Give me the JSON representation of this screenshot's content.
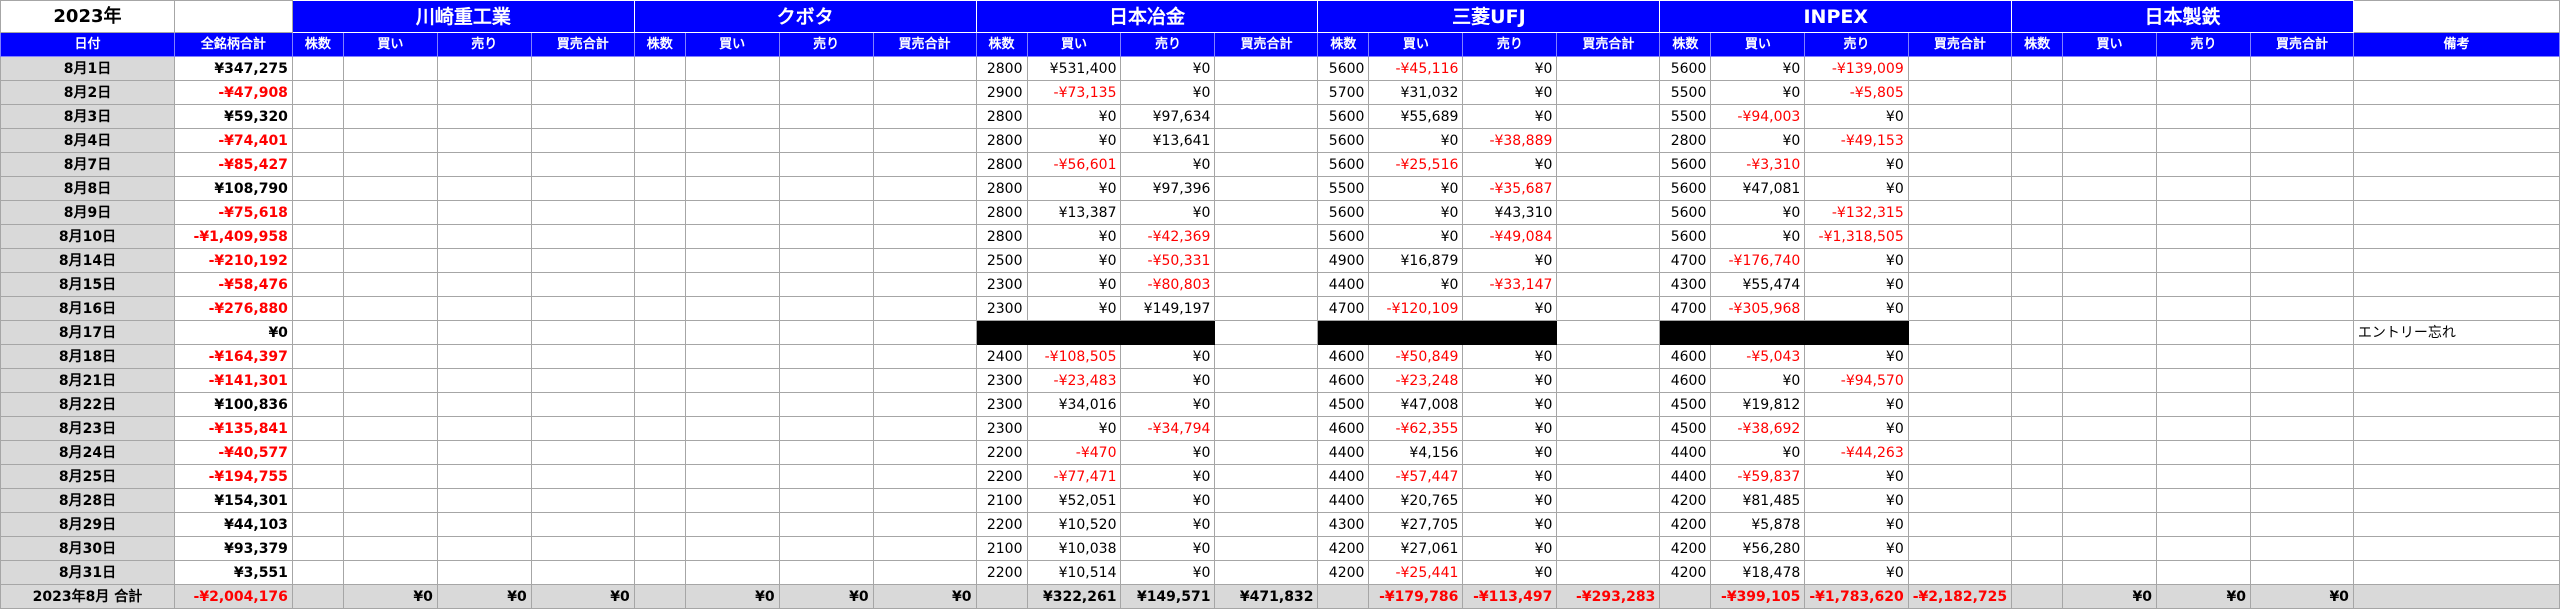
{
  "year_label": "2023年",
  "date_header": "日付",
  "total_header": "全銘柄合計",
  "note_header": "備考",
  "sub_headers": [
    "株数",
    "買い",
    "売り",
    "買売合計"
  ],
  "stocks": [
    "川崎重工業",
    "クボタ",
    "日本冶金",
    "三菱UFJ",
    "INPEX",
    "日本製鉄"
  ],
  "colors": {
    "header_blue": "#0000ff",
    "negative_red": "#ff0000",
    "date_gray": "#d9d9d9",
    "missing_black": "#000000"
  },
  "rows": [
    {
      "date": "8月1日",
      "total": "¥347,275",
      "nyk": [
        "2800",
        "¥531,400",
        "¥0"
      ],
      "mufg": [
        "5600",
        "-¥45,116",
        "¥0"
      ],
      "inpex": [
        "5600",
        "¥0",
        "-¥139,009"
      ],
      "note": ""
    },
    {
      "date": "8月2日",
      "total": "-¥47,908",
      "nyk": [
        "2900",
        "-¥73,135",
        "¥0"
      ],
      "mufg": [
        "5700",
        "¥31,032",
        "¥0"
      ],
      "inpex": [
        "5500",
        "¥0",
        "-¥5,805"
      ],
      "note": ""
    },
    {
      "date": "8月3日",
      "total": "¥59,320",
      "nyk": [
        "2800",
        "¥0",
        "¥97,634"
      ],
      "mufg": [
        "5600",
        "¥55,689",
        "¥0"
      ],
      "inpex": [
        "5500",
        "-¥94,003",
        "¥0"
      ],
      "note": ""
    },
    {
      "date": "8月4日",
      "total": "-¥74,401",
      "nyk": [
        "2800",
        "¥0",
        "¥13,641"
      ],
      "mufg": [
        "5600",
        "¥0",
        "-¥38,889"
      ],
      "inpex": [
        "2800",
        "¥0",
        "-¥49,153"
      ],
      "note": ""
    },
    {
      "date": "8月7日",
      "total": "-¥85,427",
      "nyk": [
        "2800",
        "-¥56,601",
        "¥0"
      ],
      "mufg": [
        "5600",
        "-¥25,516",
        "¥0"
      ],
      "inpex": [
        "5600",
        "-¥3,310",
        "¥0"
      ],
      "note": ""
    },
    {
      "date": "8月8日",
      "total": "¥108,790",
      "nyk": [
        "2800",
        "¥0",
        "¥97,396"
      ],
      "mufg": [
        "5500",
        "¥0",
        "-¥35,687"
      ],
      "inpex": [
        "5600",
        "¥47,081",
        "¥0"
      ],
      "note": ""
    },
    {
      "date": "8月9日",
      "total": "-¥75,618",
      "nyk": [
        "2800",
        "¥13,387",
        "¥0"
      ],
      "mufg": [
        "5600",
        "¥0",
        "¥43,310"
      ],
      "inpex": [
        "5600",
        "¥0",
        "-¥132,315"
      ],
      "note": ""
    },
    {
      "date": "8月10日",
      "total": "-¥1,409,958",
      "nyk": [
        "2800",
        "¥0",
        "-¥42,369"
      ],
      "mufg": [
        "5600",
        "¥0",
        "-¥49,084"
      ],
      "inpex": [
        "5600",
        "¥0",
        "-¥1,318,505"
      ],
      "note": ""
    },
    {
      "date": "8月14日",
      "total": "-¥210,192",
      "nyk": [
        "2500",
        "¥0",
        "-¥50,331"
      ],
      "mufg": [
        "4900",
        "¥16,879",
        "¥0"
      ],
      "inpex": [
        "4700",
        "-¥176,740",
        "¥0"
      ],
      "note": ""
    },
    {
      "date": "8月15日",
      "total": "-¥58,476",
      "nyk": [
        "2300",
        "¥0",
        "-¥80,803"
      ],
      "mufg": [
        "4400",
        "¥0",
        "-¥33,147"
      ],
      "inpex": [
        "4300",
        "¥55,474",
        "¥0"
      ],
      "note": ""
    },
    {
      "date": "8月16日",
      "total": "-¥276,880",
      "nyk": [
        "2300",
        "¥0",
        "¥149,197"
      ],
      "mufg": [
        "4700",
        "-¥120,109",
        "¥0"
      ],
      "inpex": [
        "4700",
        "-¥305,968",
        "¥0"
      ],
      "note": ""
    },
    {
      "date": "8月17日",
      "total": "¥0",
      "missing": true,
      "nyk": [
        "",
        "",
        ""
      ],
      "mufg": [
        "",
        "",
        ""
      ],
      "inpex": [
        "",
        "",
        ""
      ],
      "note": "エントリー忘れ"
    },
    {
      "date": "8月18日",
      "total": "-¥164,397",
      "nyk": [
        "2400",
        "-¥108,505",
        "¥0"
      ],
      "mufg": [
        "4600",
        "-¥50,849",
        "¥0"
      ],
      "inpex": [
        "4600",
        "-¥5,043",
        "¥0"
      ],
      "note": ""
    },
    {
      "date": "8月21日",
      "total": "-¥141,301",
      "nyk": [
        "2300",
        "-¥23,483",
        "¥0"
      ],
      "mufg": [
        "4600",
        "-¥23,248",
        "¥0"
      ],
      "inpex": [
        "4600",
        "¥0",
        "-¥94,570"
      ],
      "note": ""
    },
    {
      "date": "8月22日",
      "total": "¥100,836",
      "nyk": [
        "2300",
        "¥34,016",
        "¥0"
      ],
      "mufg": [
        "4500",
        "¥47,008",
        "¥0"
      ],
      "inpex": [
        "4500",
        "¥19,812",
        "¥0"
      ],
      "note": ""
    },
    {
      "date": "8月23日",
      "total": "-¥135,841",
      "nyk": [
        "2300",
        "¥0",
        "-¥34,794"
      ],
      "mufg": [
        "4600",
        "-¥62,355",
        "¥0"
      ],
      "inpex": [
        "4500",
        "-¥38,692",
        "¥0"
      ],
      "note": ""
    },
    {
      "date": "8月24日",
      "total": "-¥40,577",
      "nyk": [
        "2200",
        "-¥470",
        "¥0"
      ],
      "mufg": [
        "4400",
        "¥4,156",
        "¥0"
      ],
      "inpex": [
        "4400",
        "¥0",
        "-¥44,263"
      ],
      "note": ""
    },
    {
      "date": "8月25日",
      "total": "-¥194,755",
      "nyk": [
        "2200",
        "-¥77,471",
        "¥0"
      ],
      "mufg": [
        "4400",
        "-¥57,447",
        "¥0"
      ],
      "inpex": [
        "4400",
        "-¥59,837",
        "¥0"
      ],
      "note": ""
    },
    {
      "date": "8月28日",
      "total": "¥154,301",
      "nyk": [
        "2100",
        "¥52,051",
        "¥0"
      ],
      "mufg": [
        "4400",
        "¥20,765",
        "¥0"
      ],
      "inpex": [
        "4200",
        "¥81,485",
        "¥0"
      ],
      "note": ""
    },
    {
      "date": "8月29日",
      "total": "¥44,103",
      "nyk": [
        "2200",
        "¥10,520",
        "¥0"
      ],
      "mufg": [
        "4300",
        "¥27,705",
        "¥0"
      ],
      "inpex": [
        "4200",
        "¥5,878",
        "¥0"
      ],
      "note": ""
    },
    {
      "date": "8月30日",
      "total": "¥93,379",
      "nyk": [
        "2100",
        "¥10,038",
        "¥0"
      ],
      "mufg": [
        "4200",
        "¥27,061",
        "¥0"
      ],
      "inpex": [
        "4200",
        "¥56,280",
        "¥0"
      ],
      "note": ""
    },
    {
      "date": "8月31日",
      "total": "¥3,551",
      "nyk": [
        "2200",
        "¥10,514",
        "¥0"
      ],
      "mufg": [
        "4200",
        "-¥25,441",
        "¥0"
      ],
      "inpex": [
        "4200",
        "¥18,478",
        "¥0"
      ],
      "note": ""
    }
  ],
  "totals": {
    "label": "2023年8月 合計",
    "all": "-¥2,004,176",
    "kawasaki": [
      "",
      "¥0",
      "¥0",
      "¥0"
    ],
    "kubota": [
      "",
      "¥0",
      "¥0",
      "¥0"
    ],
    "nyk": [
      "",
      "¥322,261",
      "¥149,571",
      "¥471,832"
    ],
    "mufg": [
      "",
      "-¥179,786",
      "-¥113,497",
      "-¥293,283"
    ],
    "inpex": [
      "",
      "-¥399,105",
      "-¥1,783,620",
      "-¥2,182,725"
    ],
    "nipponsteel": [
      "",
      "¥0",
      "¥0",
      "¥0"
    ],
    "note": ""
  }
}
